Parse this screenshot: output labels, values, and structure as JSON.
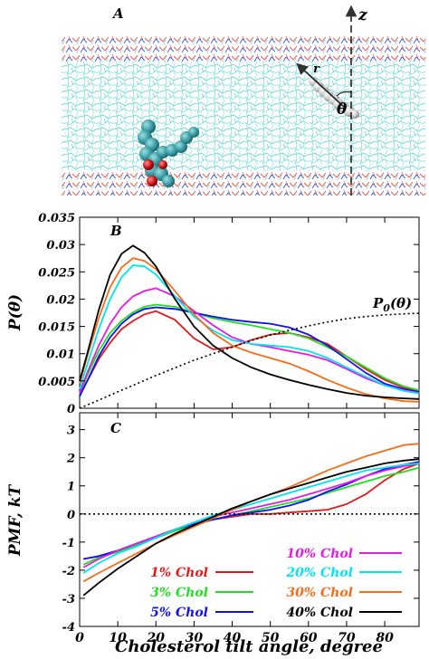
{
  "panelA": {
    "label": "A",
    "z_label": "z",
    "r_label": "r",
    "theta_label": "θ"
  },
  "chart_data": [
    {
      "id": "B",
      "type": "line",
      "panel_label": "B",
      "ylabel": "P(θ)",
      "xlabel": "",
      "xlim": [
        0,
        89
      ],
      "ylim": [
        0,
        0.035
      ],
      "yticks": [
        0,
        0.005,
        0.01,
        0.015,
        0.02,
        0.025,
        0.03,
        0.035
      ],
      "ytick_labels": [
        "0",
        "0.005",
        "0.01",
        "0.015",
        "0.02",
        "0.025",
        "0.03",
        "0.035"
      ],
      "xticks": [
        0,
        10,
        20,
        30,
        40,
        50,
        60,
        70,
        80
      ],
      "grid": false,
      "annotation": "P0(θ)",
      "series": [
        {
          "name": "1% Chol",
          "color": "#e31a1c",
          "x": [
            0,
            2,
            5,
            8,
            11,
            14,
            17,
            20,
            25,
            30,
            35,
            40,
            45,
            50,
            55,
            60,
            65,
            70,
            75,
            80,
            85,
            89
          ],
          "y": [
            0.0025,
            0.005,
            0.009,
            0.012,
            0.0145,
            0.016,
            0.0172,
            0.0178,
            0.0162,
            0.0128,
            0.0108,
            0.0112,
            0.0125,
            0.0135,
            0.0138,
            0.013,
            0.0118,
            0.0095,
            0.0072,
            0.0052,
            0.0038,
            0.003
          ]
        },
        {
          "name": "3% Chol",
          "color": "#22dd22",
          "x": [
            0,
            2,
            5,
            8,
            11,
            14,
            17,
            20,
            25,
            30,
            35,
            40,
            45,
            50,
            55,
            60,
            65,
            70,
            75,
            80,
            85,
            89
          ],
          "y": [
            0.0025,
            0.006,
            0.0105,
            0.0138,
            0.016,
            0.0176,
            0.0186,
            0.019,
            0.0186,
            0.0175,
            0.0165,
            0.0158,
            0.0152,
            0.0145,
            0.0138,
            0.0128,
            0.0112,
            0.0095,
            0.0075,
            0.0055,
            0.004,
            0.0033
          ]
        },
        {
          "name": "5% Chol",
          "color": "#1010ee",
          "x": [
            0,
            2,
            5,
            8,
            11,
            14,
            17,
            20,
            25,
            30,
            35,
            40,
            45,
            50,
            55,
            60,
            65,
            70,
            75,
            80,
            85,
            89
          ],
          "y": [
            0.0022,
            0.005,
            0.0095,
            0.013,
            0.0155,
            0.0172,
            0.0182,
            0.0185,
            0.0182,
            0.0175,
            0.0168,
            0.0162,
            0.0158,
            0.0155,
            0.0148,
            0.0135,
            0.0115,
            0.009,
            0.0065,
            0.0045,
            0.0035,
            0.003
          ]
        },
        {
          "name": "10% Chol",
          "color": "#e619e6",
          "x": [
            0,
            2,
            5,
            8,
            11,
            14,
            17,
            20,
            25,
            30,
            35,
            40,
            45,
            50,
            55,
            60,
            65,
            70,
            75,
            80,
            85,
            89
          ],
          "y": [
            0.0028,
            0.0065,
            0.0115,
            0.0155,
            0.0185,
            0.0205,
            0.0215,
            0.022,
            0.0205,
            0.0178,
            0.0152,
            0.013,
            0.0118,
            0.0112,
            0.0105,
            0.0098,
            0.0088,
            0.0072,
            0.0055,
            0.0042,
            0.0033,
            0.0028
          ]
        },
        {
          "name": "20% Chol",
          "color": "#00e5ee",
          "x": [
            0,
            2,
            5,
            8,
            11,
            14,
            17,
            20,
            25,
            30,
            35,
            40,
            45,
            50,
            55,
            60,
            65,
            70,
            75,
            80,
            85,
            89
          ],
          "y": [
            0.0035,
            0.008,
            0.0145,
            0.02,
            0.024,
            0.0262,
            0.026,
            0.0245,
            0.0205,
            0.0168,
            0.0142,
            0.0125,
            0.0118,
            0.0115,
            0.0112,
            0.0105,
            0.0092,
            0.0075,
            0.0058,
            0.0042,
            0.0032,
            0.0027
          ]
        },
        {
          "name": "30% Chol",
          "color": "#f46d1b",
          "x": [
            0,
            2,
            5,
            8,
            11,
            14,
            17,
            20,
            25,
            30,
            35,
            40,
            45,
            50,
            55,
            60,
            65,
            70,
            75,
            80,
            85,
            89
          ],
          "y": [
            0.0045,
            0.0095,
            0.0165,
            0.0222,
            0.0258,
            0.0275,
            0.027,
            0.0255,
            0.0215,
            0.0172,
            0.0138,
            0.0115,
            0.0102,
            0.0092,
            0.0082,
            0.0068,
            0.0052,
            0.0038,
            0.0026,
            0.0018,
            0.0013,
            0.0012
          ]
        },
        {
          "name": "40% Chol",
          "color": "#000000",
          "x": [
            0,
            2,
            5,
            8,
            11,
            14,
            17,
            20,
            25,
            30,
            35,
            40,
            45,
            50,
            55,
            60,
            65,
            70,
            75,
            80,
            85,
            89
          ],
          "y": [
            0.005,
            0.01,
            0.018,
            0.0245,
            0.0283,
            0.0298,
            0.0285,
            0.026,
            0.02,
            0.015,
            0.0115,
            0.0092,
            0.0075,
            0.0062,
            0.0052,
            0.0043,
            0.0035,
            0.0028,
            0.0023,
            0.002,
            0.0018,
            0.0017
          ]
        },
        {
          "name": "P0(θ)",
          "color": "#000000",
          "dashed": true,
          "x": [
            0,
            5,
            10,
            15,
            20,
            25,
            30,
            35,
            40,
            45,
            50,
            55,
            60,
            65,
            70,
            75,
            80,
            85,
            89
          ],
          "y": [
            0,
            0.0015,
            0.003,
            0.0045,
            0.006,
            0.0074,
            0.0088,
            0.01,
            0.0112,
            0.0124,
            0.0134,
            0.0143,
            0.0151,
            0.0158,
            0.0164,
            0.0168,
            0.0171,
            0.0173,
            0.0174
          ]
        }
      ]
    },
    {
      "id": "C",
      "type": "line",
      "panel_label": "C",
      "ylabel": "PMF, kT",
      "xlabel": "Cholesterol tilt angle, degree",
      "xlim": [
        0,
        89
      ],
      "ylim": [
        -4,
        3.6
      ],
      "yticks": [
        -4,
        -3,
        -2,
        -1,
        0,
        1,
        2,
        3
      ],
      "ytick_labels": [
        "-4",
        "-3",
        "-2",
        "-1",
        "0",
        "1",
        "2",
        "3"
      ],
      "xticks": [
        0,
        10,
        20,
        30,
        40,
        50,
        60,
        70,
        80
      ],
      "xtick_labels": [
        "0",
        "10",
        "20",
        "30",
        "40",
        "50",
        "60",
        "70",
        "80"
      ],
      "grid": false,
      "legend_position": "bottom-right",
      "series": [
        {
          "name": "1% Chol",
          "color": "#e31a1c",
          "x": [
            1,
            5,
            10,
            15,
            20,
            25,
            30,
            35,
            40,
            45,
            50,
            55,
            60,
            65,
            70,
            75,
            80,
            85,
            89
          ],
          "y": [
            -1.6,
            -1.5,
            -1.3,
            -1.05,
            -0.85,
            -0.6,
            -0.35,
            -0.2,
            -0.1,
            0.0,
            0.0,
            0.05,
            0.1,
            0.15,
            0.35,
            0.7,
            1.2,
            1.6,
            1.8
          ]
        },
        {
          "name": "3% Chol",
          "color": "#22dd22",
          "x": [
            1,
            5,
            10,
            15,
            20,
            25,
            30,
            35,
            40,
            45,
            50,
            55,
            60,
            65,
            70,
            75,
            80,
            85,
            89
          ],
          "y": [
            -1.8,
            -1.55,
            -1.35,
            -1.1,
            -0.85,
            -0.6,
            -0.4,
            -0.2,
            -0.05,
            0.1,
            0.25,
            0.4,
            0.55,
            0.75,
            0.95,
            1.15,
            1.35,
            1.5,
            1.65
          ]
        },
        {
          "name": "5% Chol",
          "color": "#1010ee",
          "x": [
            1,
            5,
            10,
            15,
            20,
            25,
            30,
            35,
            40,
            45,
            50,
            55,
            60,
            65,
            70,
            75,
            80,
            85,
            89
          ],
          "y": [
            -1.6,
            -1.5,
            -1.3,
            -1.05,
            -0.8,
            -0.55,
            -0.35,
            -0.2,
            -0.05,
            0.05,
            0.15,
            0.3,
            0.5,
            0.8,
            1.05,
            1.35,
            1.6,
            1.75,
            1.85
          ]
        },
        {
          "name": "10% Chol",
          "color": "#e619e6",
          "x": [
            1,
            5,
            10,
            15,
            20,
            25,
            30,
            35,
            40,
            45,
            50,
            55,
            60,
            65,
            70,
            75,
            80,
            85,
            89
          ],
          "y": [
            -1.9,
            -1.6,
            -1.3,
            -1.05,
            -0.8,
            -0.55,
            -0.3,
            -0.1,
            0.05,
            0.2,
            0.35,
            0.5,
            0.7,
            0.9,
            1.1,
            1.35,
            1.55,
            1.7,
            1.8
          ]
        },
        {
          "name": "20% Chol",
          "color": "#00e5ee",
          "x": [
            1,
            5,
            10,
            15,
            20,
            25,
            30,
            35,
            40,
            45,
            50,
            55,
            60,
            65,
            70,
            75,
            80,
            85,
            89
          ],
          "y": [
            -2.1,
            -1.75,
            -1.4,
            -1.15,
            -0.85,
            -0.55,
            -0.3,
            -0.05,
            0.15,
            0.35,
            0.55,
            0.75,
            0.95,
            1.15,
            1.35,
            1.55,
            1.65,
            1.75,
            1.8
          ]
        },
        {
          "name": "30% Chol",
          "color": "#f46d1b",
          "x": [
            1,
            5,
            10,
            15,
            20,
            25,
            30,
            35,
            40,
            45,
            50,
            55,
            60,
            65,
            70,
            75,
            80,
            85,
            89
          ],
          "y": [
            -2.4,
            -2.1,
            -1.75,
            -1.4,
            -1.05,
            -0.75,
            -0.45,
            -0.15,
            0.15,
            0.45,
            0.7,
            0.95,
            1.25,
            1.55,
            1.8,
            2.05,
            2.25,
            2.45,
            2.5
          ]
        },
        {
          "name": "40% Chol",
          "color": "#000000",
          "x": [
            1,
            5,
            10,
            15,
            20,
            25,
            30,
            35,
            40,
            45,
            50,
            55,
            60,
            65,
            70,
            75,
            80,
            85,
            89
          ],
          "y": [
            -2.9,
            -2.45,
            -1.95,
            -1.5,
            -1.05,
            -0.7,
            -0.4,
            -0.1,
            0.2,
            0.45,
            0.7,
            0.9,
            1.1,
            1.3,
            1.5,
            1.65,
            1.8,
            1.9,
            1.95
          ]
        },
        {
          "name": "",
          "color": "#000000",
          "dashed": true,
          "x": [
            0,
            89
          ],
          "y": [
            0,
            0
          ]
        }
      ]
    }
  ]
}
